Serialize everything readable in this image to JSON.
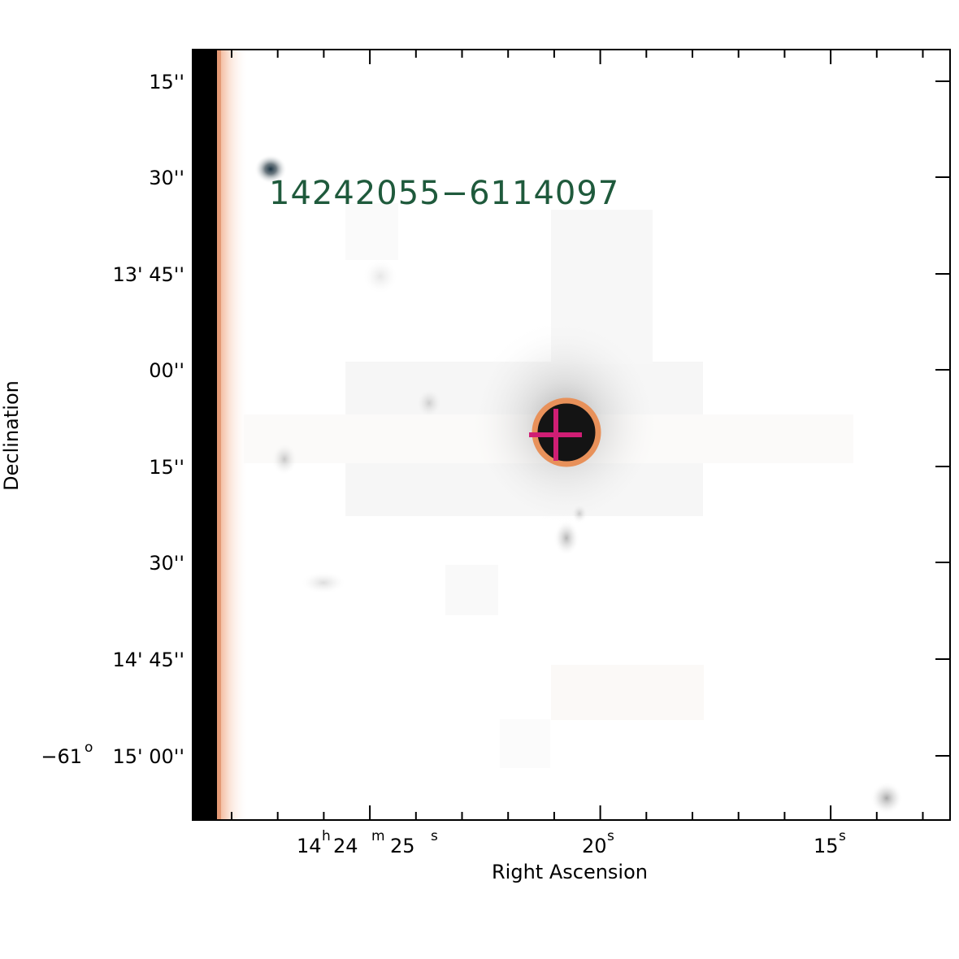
{
  "image": {
    "source_label": "14242055−6114097",
    "source_label_color": "#1f5a3c",
    "circle_color": "#e8915a",
    "cross_color": "#d01e74",
    "frame_color": "#000000",
    "background_color": "#ffffff"
  },
  "axes": {
    "x_title": "Right Ascension",
    "y_title": "Declination",
    "x_labels": [
      {
        "main": "14",
        "h": "h",
        "mid": " 24",
        "m": "m",
        "tail": " 25",
        "s": "s"
      },
      {
        "main": "20",
        "s": "s"
      },
      {
        "main": "15",
        "s": "s"
      }
    ],
    "y_labels": [
      {
        "text": "15''"
      },
      {
        "text": "30''"
      },
      {
        "text": "13' 45''"
      },
      {
        "text": "00''"
      },
      {
        "text": "15''"
      },
      {
        "text": "30''"
      },
      {
        "text": "14' 45''"
      },
      {
        "pre": "−61",
        "sup": "o",
        "text": " 15' 00''"
      }
    ]
  }
}
